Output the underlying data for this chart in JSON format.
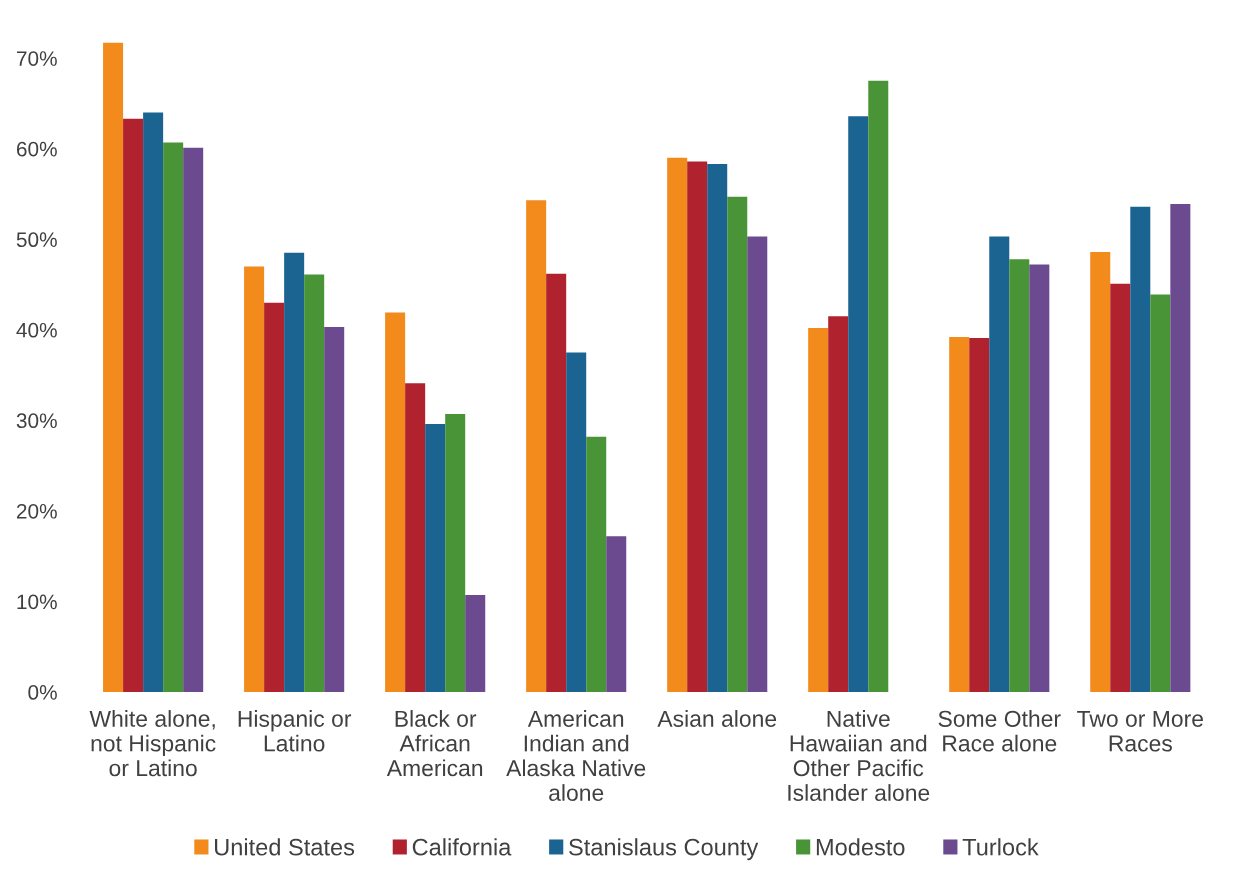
{
  "chart_data": {
    "type": "bar",
    "categories": [
      "White alone,\nnot Hispanic\nor Latino",
      "Hispanic or\nLatino",
      "Black or\nAfrican\nAmerican",
      "American\nIndian and\nAlaska Native\nalone",
      "Asian alone",
      "Native\nHawaiian and\nOther Pacific\nIslander alone",
      "Some Other\nRace alone",
      "Two or More\nRaces"
    ],
    "series": [
      {
        "name": "United States",
        "color": "#f28a1c",
        "values": [
          71.7,
          47.0,
          41.9,
          54.3,
          59.0,
          40.2,
          39.2,
          48.6
        ]
      },
      {
        "name": "California",
        "color": "#b0232e",
        "values": [
          63.3,
          43.0,
          34.1,
          46.2,
          58.6,
          41.5,
          39.1,
          45.1
        ]
      },
      {
        "name": "Stanislaus County",
        "color": "#1b6491",
        "values": [
          64.0,
          48.5,
          29.6,
          37.5,
          58.3,
          63.6,
          50.3,
          53.6
        ]
      },
      {
        "name": "Modesto",
        "color": "#4a9438",
        "values": [
          60.7,
          46.1,
          30.7,
          28.2,
          54.7,
          67.5,
          47.8,
          43.9
        ]
      },
      {
        "name": "Turlock",
        "color": "#6b4a8f",
        "values": [
          60.1,
          40.3,
          10.7,
          17.2,
          50.3,
          null,
          47.2,
          53.9
        ]
      }
    ],
    "ylim": [
      0,
      72
    ],
    "yticks": [
      {
        "value": 0,
        "label": "0%"
      },
      {
        "value": 10,
        "label": "10%"
      },
      {
        "value": 20,
        "label": "20%"
      },
      {
        "value": 30,
        "label": "30%"
      },
      {
        "value": 40,
        "label": "40%"
      },
      {
        "value": 50,
        "label": "50%"
      },
      {
        "value": 60,
        "label": "60%"
      },
      {
        "value": 70,
        "label": "70%"
      }
    ],
    "legend": "bottom"
  }
}
